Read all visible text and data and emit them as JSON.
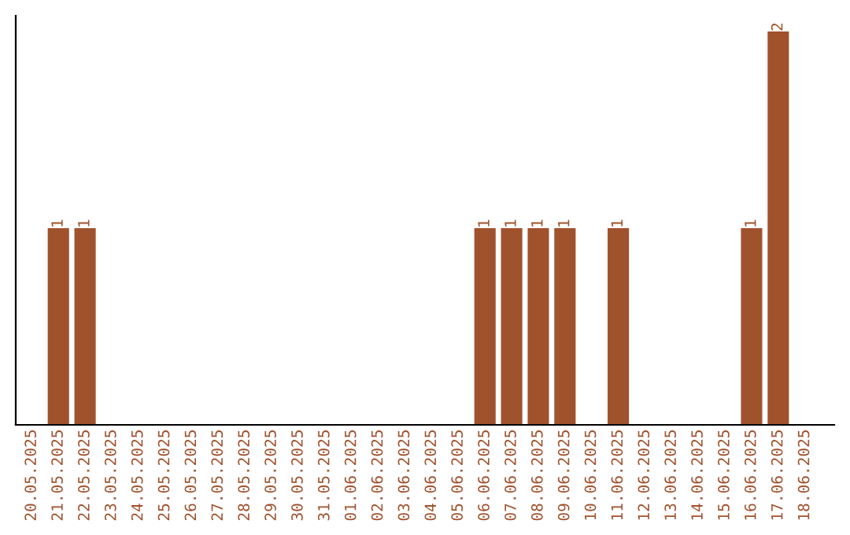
{
  "chart_data": {
    "type": "bar",
    "categories": [
      "20.05.2025",
      "21.05.2025",
      "22.05.2025",
      "23.05.2025",
      "24.05.2025",
      "25.05.2025",
      "26.05.2025",
      "27.05.2025",
      "28.05.2025",
      "29.05.2025",
      "30.05.2025",
      "31.05.2025",
      "01.06.2025",
      "02.06.2025",
      "03.06.2025",
      "04.06.2025",
      "05.06.2025",
      "06.06.2025",
      "07.06.2025",
      "08.06.2025",
      "09.06.2025",
      "10.06.2025",
      "11.06.2025",
      "12.06.2025",
      "13.06.2025",
      "14.06.2025",
      "15.06.2025",
      "16.06.2025",
      "17.06.2025",
      "18.06.2025"
    ],
    "values": [
      0,
      1,
      1,
      0,
      0,
      0,
      0,
      0,
      0,
      0,
      0,
      0,
      0,
      0,
      0,
      0,
      0,
      1,
      1,
      1,
      1,
      0,
      1,
      0,
      0,
      0,
      0,
      1,
      2,
      0
    ],
    "value_labels": [
      null,
      "1",
      "1",
      null,
      null,
      null,
      null,
      null,
      null,
      null,
      null,
      null,
      null,
      null,
      null,
      null,
      null,
      "1",
      "1",
      "1",
      "1",
      null,
      "1",
      null,
      null,
      null,
      null,
      "1",
      "2",
      null
    ],
    "color": "#a0522d",
    "ylim": [
      0,
      2.08
    ],
    "tick_labels": "x",
    "grid": false,
    "legend": false
  }
}
